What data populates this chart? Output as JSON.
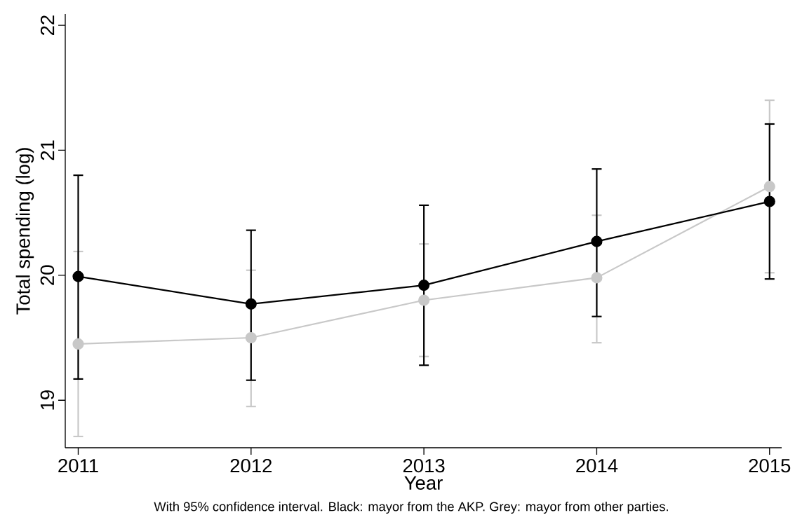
{
  "chart_data": {
    "type": "line",
    "xlabel": "Year",
    "ylabel": "Total spending (log)",
    "annotations": [
      "With 95% confidence interval. Black: mayor from the AKP. Grey: mayor from other parties."
    ],
    "x": [
      2011,
      2012,
      2013,
      2014,
      2015
    ],
    "series": [
      {
        "color": "#c8c8c8",
        "values": [
          19.45,
          19.5,
          19.8,
          19.98,
          20.71
        ],
        "errors": [
          [
            18.71,
            20.19
          ],
          [
            18.95,
            20.04
          ],
          [
            19.35,
            20.25
          ],
          [
            19.46,
            20.48
          ],
          [
            20.02,
            21.4
          ]
        ]
      },
      {
        "color": "#000000",
        "values": [
          19.99,
          19.77,
          19.92,
          20.27,
          20.59
        ],
        "errors": [
          [
            19.17,
            20.8
          ],
          [
            19.16,
            20.36
          ],
          [
            19.28,
            20.56
          ],
          [
            19.67,
            20.85
          ],
          [
            19.97,
            21.21
          ]
        ]
      }
    ],
    "xlim": [
      2010.925,
      2015.07
    ],
    "ylim": [
      18.62,
      22.09
    ],
    "xticks": [
      2011,
      2012,
      2013,
      2014,
      2015
    ],
    "yticks": [
      19,
      20,
      21,
      22
    ],
    "grid": false,
    "marker": "circle",
    "line_style": "solid"
  }
}
